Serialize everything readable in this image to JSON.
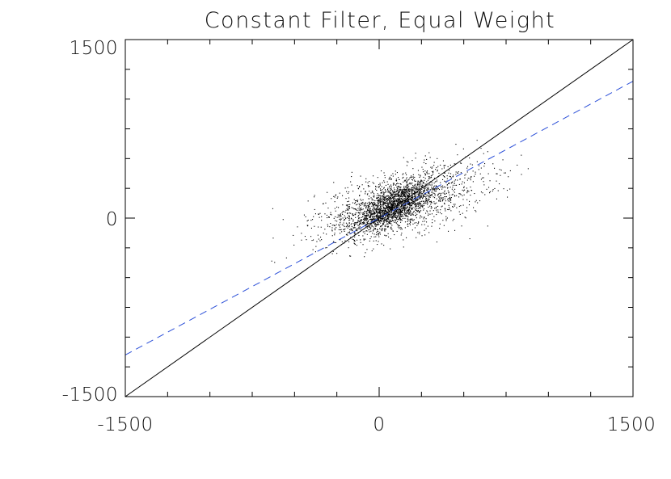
{
  "chart_data": {
    "type": "scatter",
    "title": "Constant Filter, Equal Weight",
    "xlabel": "",
    "ylabel": "",
    "xlim": [
      -1500,
      1500
    ],
    "ylim": [
      -1500,
      1500
    ],
    "x_ticks": [
      "-1500",
      "0",
      "1500"
    ],
    "y_ticks": [
      "-1500",
      "0",
      "1500"
    ],
    "x_tick_values": [
      -1500,
      0,
      1500
    ],
    "y_tick_values": [
      -1500,
      0,
      1500
    ],
    "minor_tick_step": 250,
    "grid": false,
    "lines": [
      {
        "style": "solid",
        "color": "#000000",
        "x": [
          -1500,
          1500
        ],
        "y": [
          -1500,
          1500
        ]
      },
      {
        "style": "dashed",
        "color": "#2b4fd8",
        "x": [
          -1500,
          1500
        ],
        "y": [
          -1150,
          1150
        ]
      }
    ],
    "scatter_cloud": {
      "n_points": 3000,
      "core": {
        "center": [
          80,
          100
        ],
        "spread": [
          110,
          75
        ],
        "slope": 0.62,
        "fraction": 0.45
      },
      "broad": {
        "center": [
          120,
          130
        ],
        "spread": [
          250,
          130
        ],
        "slope": 0.35,
        "fraction": 0.55
      },
      "x_range": [
        -650,
        950
      ],
      "y_range": [
        -650,
        700
      ]
    },
    "colors": {
      "axes": "#000000",
      "points": "#000000",
      "identity": "#000000",
      "fit": "#2b4fd8"
    }
  }
}
